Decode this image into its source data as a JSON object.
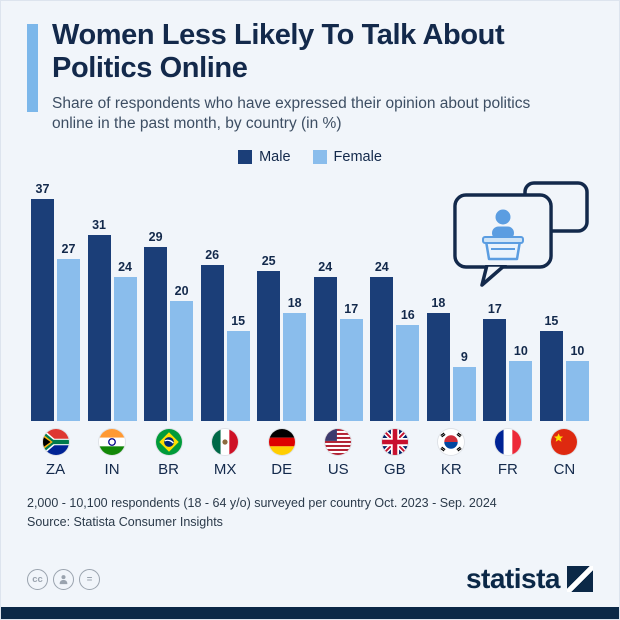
{
  "header": {
    "title": "Women Less Likely To Talk About Politics Online",
    "subtitle": "Share of respondents who have expressed their opinion about politics online in the past month, by country (in %)"
  },
  "chart_data": {
    "type": "bar",
    "title": "Women Less Likely To Talk About Politics Online",
    "categories": [
      "ZA",
      "IN",
      "BR",
      "MX",
      "DE",
      "US",
      "GB",
      "KR",
      "FR",
      "CN"
    ],
    "series": [
      {
        "name": "Male",
        "color": "#1b3e78",
        "values": [
          37,
          31,
          29,
          26,
          25,
          24,
          24,
          18,
          17,
          15
        ]
      },
      {
        "name": "Female",
        "color": "#8abdec",
        "values": [
          27,
          24,
          20,
          15,
          18,
          17,
          16,
          9,
          10,
          10
        ]
      }
    ],
    "flags": [
      "za",
      "in",
      "br",
      "mx",
      "de",
      "us",
      "gb",
      "kr",
      "fr",
      "cn"
    ],
    "ylim": [
      0,
      40
    ],
    "value_labels": true,
    "legend_position": "top",
    "grid": false,
    "xlabel": "",
    "ylabel": "Share of respondents (%)"
  },
  "footer": {
    "note": "2,000 - 10,100 respondents (18 - 64 y/o) surveyed per country Oct. 2023 - Sep. 2024",
    "source": "Source: Statista Consumer Insights"
  },
  "branding": {
    "logo_text": "statista",
    "license": {
      "cc": "cc",
      "nd": "="
    }
  },
  "colors": {
    "male": "#1b3e78",
    "female": "#8abdec",
    "accent_bar": "#7cb7ea",
    "title_text": "#13294b",
    "background": "#f1f5fa"
  },
  "illustration": {
    "name": "speech-bubbles-speaker"
  }
}
